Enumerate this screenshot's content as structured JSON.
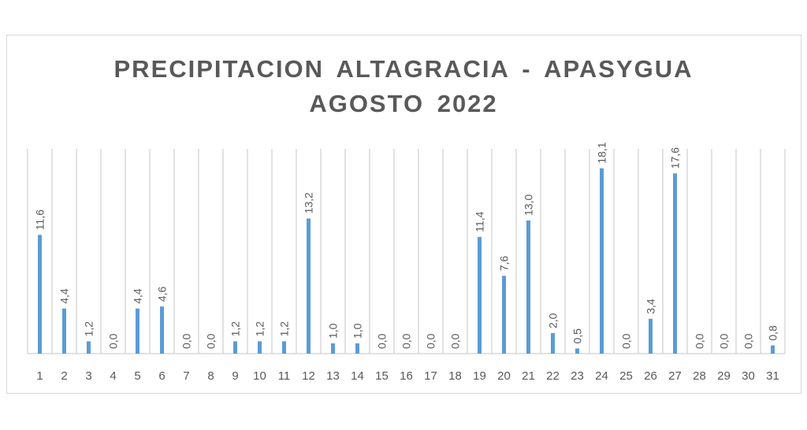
{
  "chart_data": {
    "type": "bar",
    "title": [
      "PRECIPITACION  ALTAGRACIA  - APASYGUA",
      "AGOSTO 2022"
    ],
    "xlabel": "",
    "ylabel": "",
    "categories": [
      "1",
      "2",
      "3",
      "4",
      "5",
      "6",
      "7",
      "8",
      "9",
      "10",
      "11",
      "12",
      "13",
      "14",
      "15",
      "16",
      "17",
      "18",
      "19",
      "20",
      "21",
      "22",
      "23",
      "24",
      "25",
      "26",
      "27",
      "28",
      "29",
      "30",
      "31"
    ],
    "values": [
      11.6,
      4.4,
      1.2,
      0.0,
      4.4,
      4.6,
      0.0,
      0.0,
      1.2,
      1.2,
      1.2,
      13.2,
      1.0,
      1.0,
      0.0,
      0.0,
      0.0,
      0.0,
      11.4,
      7.6,
      13.0,
      2.0,
      0.5,
      18.1,
      0.0,
      3.4,
      17.6,
      0.0,
      0.0,
      0.0,
      0.8
    ],
    "data_labels": [
      "11,6",
      "4,4",
      "1,2",
      "0,0",
      "4,4",
      "4,6",
      "0,0",
      "0,0",
      "1,2",
      "1,2",
      "1,2",
      "13,2",
      "1,0",
      "1,0",
      "0,0",
      "0,0",
      "0,0",
      "0,0",
      "11,4",
      "7,6",
      "13,0",
      "2,0",
      "0,5",
      "18,1",
      "0,0",
      "3,4",
      "17,6",
      "0,0",
      "0,0",
      "0,0",
      "0,8"
    ],
    "ylim": [
      0,
      20
    ],
    "grid": "vertical category gridlines",
    "legend": "none",
    "bar_color": "#5b9bd5",
    "grid_color": "#d9d9d9",
    "text_color": "#595959"
  }
}
